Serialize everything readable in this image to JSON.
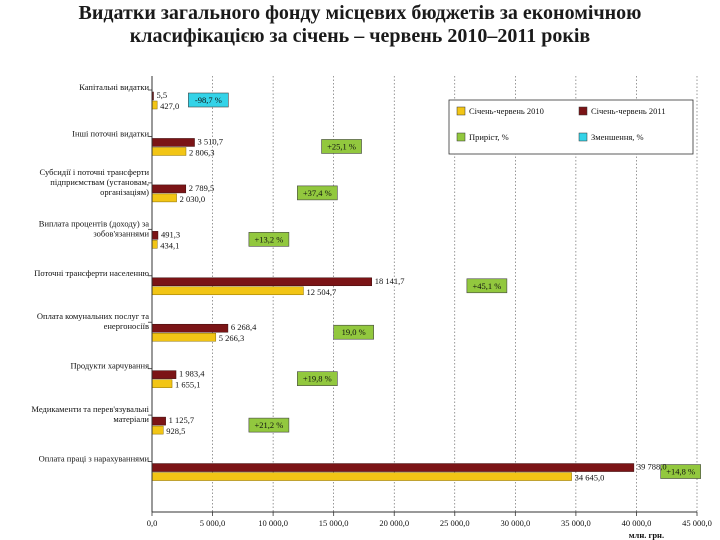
{
  "title": {
    "line1": "Видатки загального фонду місцевих бюджетів за економічною",
    "line2": "класифікацією за січень – червень 2010–2011 років"
  },
  "colors": {
    "s2010": "#f2c515",
    "s2011": "#7b1416",
    "growth": "#92c83e",
    "decrease": "#33d3e8"
  },
  "chart_data": {
    "type": "bar",
    "orientation": "horizontal",
    "title": "Видатки загального фонду місцевих бюджетів за економічною класифікацією за січень – червень 2010–2011 років",
    "xlabel": "млн. грн.",
    "xlim": [
      0,
      45000
    ],
    "xticks": [
      0,
      5000,
      10000,
      15000,
      20000,
      25000,
      30000,
      35000,
      40000,
      45000
    ],
    "xtick_labels": [
      "0,0",
      "5 000,0",
      "10 000,0",
      "15 000,0",
      "20 000,0",
      "25 000,0",
      "30 000,0",
      "35 000,0",
      "40 000,0",
      "45 000,0"
    ],
    "grid": "vertical",
    "legend_position": "top-right",
    "legend": [
      "Січень-червень 2010",
      "Січень-червень 2011",
      "Приріст, %",
      "Зменшення, %"
    ],
    "categories": [
      {
        "lines": [
          "Капітальні видатки"
        ],
        "v2010": 427.0,
        "v2010_label": "427,0",
        "v2011": 5.5,
        "v2011_label": "5,5",
        "change": "-98,7 %",
        "change_type": "decrease",
        "change_pos": 3000
      },
      {
        "lines": [
          "Інші поточні видатки"
        ],
        "v2010": 2806.3,
        "v2010_label": "2 806,3",
        "v2011": 3510.7,
        "v2011_label": "3 510,7",
        "change": "+25,1 %",
        "change_type": "growth",
        "change_pos": 14000
      },
      {
        "lines": [
          "Субсидії і поточні трансферти",
          "підприємствам (установам,",
          "організаціям)"
        ],
        "v2010": 2030.0,
        "v2010_label": "2 030,0",
        "v2011": 2789.5,
        "v2011_label": "2 789,5",
        "change": "+37,4 %",
        "change_type": "growth",
        "change_pos": 12000
      },
      {
        "lines": [
          "Виплата процентів (доходу) за",
          "зобов'язаннями"
        ],
        "v2010": 434.1,
        "v2010_label": "434,1",
        "v2011": 491.3,
        "v2011_label": "491,3",
        "change": "+13,2 %",
        "change_type": "growth",
        "change_pos": 8000
      },
      {
        "lines": [
          "Поточні трансферти населенню"
        ],
        "v2010": 12504.7,
        "v2010_label": "12 504,7",
        "v2011": 18141.7,
        "v2011_label": "18 141,7",
        "change": "+45,1 %",
        "change_type": "growth",
        "change_pos": 26000
      },
      {
        "lines": [
          "Оплата комунальних послуг та",
          "енергоносіїв"
        ],
        "v2010": 5266.3,
        "v2010_label": "5 266,3",
        "v2011": 6268.4,
        "v2011_label": "6 268,4",
        "change": "19,0 %",
        "change_type": "growth",
        "change_pos": 15000
      },
      {
        "lines": [
          "Продукти харчування"
        ],
        "v2010": 1655.1,
        "v2010_label": "1 655,1",
        "v2011": 1983.4,
        "v2011_label": "1 983,4",
        "change": "+19,8 %",
        "change_type": "growth",
        "change_pos": 12000
      },
      {
        "lines": [
          "Медикаменти та перев'язувальні",
          "матеріали"
        ],
        "v2010": 928.5,
        "v2010_label": "928,5",
        "v2011": 1125.7,
        "v2011_label": "1 125,7",
        "change": "+21,2 %",
        "change_type": "growth",
        "change_pos": 8000
      },
      {
        "lines": [
          "Оплата праці з нарахуваннями"
        ],
        "v2010": 34645.0,
        "v2010_label": "34 645,0",
        "v2011": 39788.0,
        "v2011_label": "39 788,0",
        "change": "+14,8 %",
        "change_type": "growth",
        "change_pos": 42000
      }
    ]
  }
}
